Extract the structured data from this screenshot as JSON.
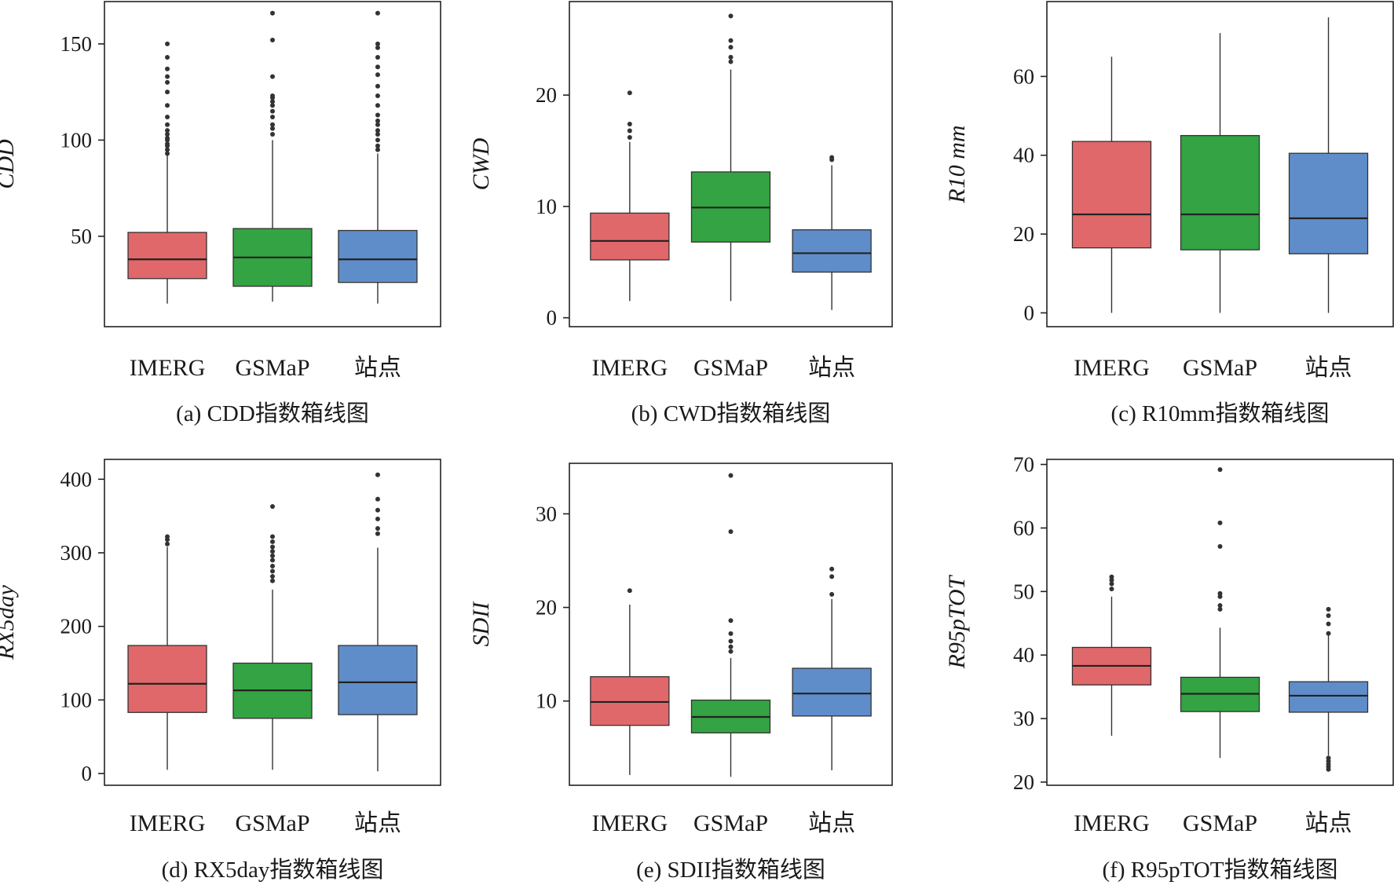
{
  "chart_data": [
    {
      "type": "box",
      "caption": "(a) CDD指数箱线图",
      "ylabel": "CDD",
      "ylim": [
        3,
        172
      ],
      "yticks": [
        50,
        100,
        150
      ],
      "categories": [
        "IMERG",
        "GSMaP",
        "站点"
      ],
      "colors": [
        "#E0686A",
        "#34A343",
        "#5F8DC9"
      ],
      "boxes": [
        {
          "min": 15,
          "q1": 28,
          "median": 38,
          "q3": 52,
          "max": 92,
          "outliers": [
            93,
            95,
            97,
            98,
            100,
            101,
            103,
            105,
            108,
            112,
            118,
            125,
            130,
            133,
            137,
            143,
            150
          ]
        },
        {
          "min": 16,
          "q1": 24,
          "median": 39,
          "q3": 54,
          "max": 100,
          "outliers": [
            103,
            106,
            108,
            112,
            115,
            118,
            120,
            122,
            123,
            133,
            152,
            166
          ]
        },
        {
          "min": 15,
          "q1": 26,
          "median": 38,
          "q3": 53,
          "max": 93,
          "outliers": [
            95,
            97,
            100,
            103,
            105,
            108,
            110,
            113,
            118,
            123,
            128,
            134,
            138,
            143,
            148,
            150,
            166
          ]
        }
      ]
    },
    {
      "type": "box",
      "caption": "(b) CWD指数箱线图",
      "ylabel": "CWD",
      "ylim": [
        -0.8,
        28.4
      ],
      "yticks": [
        0,
        10,
        20
      ],
      "categories": [
        "IMERG",
        "GSMaP",
        "站点"
      ],
      "colors": [
        "#E0686A",
        "#34A343",
        "#5F8DC9"
      ],
      "boxes": [
        {
          "min": 1.5,
          "q1": 5.2,
          "median": 6.9,
          "q3": 9.4,
          "max": 15.8,
          "outliers": [
            16.2,
            16.8,
            17.4,
            20.2
          ]
        },
        {
          "min": 1.5,
          "q1": 6.8,
          "median": 9.9,
          "q3": 13.1,
          "max": 22.3,
          "outliers": [
            23.0,
            23.4,
            24.3,
            24.9,
            27.1
          ]
        },
        {
          "min": 0.7,
          "q1": 4.1,
          "median": 5.8,
          "q3": 7.9,
          "max": 13.7,
          "outliers": [
            14.2,
            14.4
          ]
        }
      ]
    },
    {
      "type": "box",
      "caption": "(c) R10mm指数箱线图",
      "ylabel": "R10 mm",
      "ylim": [
        -3.5,
        79
      ],
      "yticks": [
        0,
        20,
        40,
        60
      ],
      "categories": [
        "IMERG",
        "GSMaP",
        "站点"
      ],
      "colors": [
        "#E0686A",
        "#34A343",
        "#5F8DC9"
      ],
      "boxes": [
        {
          "min": 0,
          "q1": 16.5,
          "median": 25,
          "q3": 43.5,
          "max": 65,
          "outliers": []
        },
        {
          "min": 0,
          "q1": 16,
          "median": 25,
          "q3": 45,
          "max": 71,
          "outliers": []
        },
        {
          "min": 0,
          "q1": 15,
          "median": 24,
          "q3": 40.5,
          "max": 75,
          "outliers": []
        }
      ]
    },
    {
      "type": "box",
      "caption": "(d) RX5day指数箱线图",
      "ylabel": "RX5day",
      "ylim": [
        -16,
        427
      ],
      "yticks": [
        0,
        100,
        200,
        300,
        400
      ],
      "categories": [
        "IMERG",
        "GSMaP",
        "站点"
      ],
      "colors": [
        "#E0686A",
        "#34A343",
        "#5F8DC9"
      ],
      "boxes": [
        {
          "min": 5,
          "q1": 83,
          "median": 122,
          "q3": 174,
          "max": 308,
          "outliers": [
            312,
            318,
            322
          ]
        },
        {
          "min": 5,
          "q1": 75,
          "median": 113,
          "q3": 150,
          "max": 250,
          "outliers": [
            262,
            268,
            275,
            282,
            290,
            296,
            302,
            308,
            315,
            322,
            363
          ]
        },
        {
          "min": 3,
          "q1": 80,
          "median": 124,
          "q3": 174,
          "max": 307,
          "outliers": [
            326,
            333,
            346,
            358,
            373,
            406
          ]
        }
      ]
    },
    {
      "type": "box",
      "caption": "(e) SDII指数箱线图",
      "ylabel": "SDII",
      "ylim": [
        1,
        35.4
      ],
      "yticks": [
        10,
        20,
        30
      ],
      "categories": [
        "IMERG",
        "GSMaP",
        "站点"
      ],
      "colors": [
        "#E0686A",
        "#34A343",
        "#5F8DC9"
      ],
      "boxes": [
        {
          "min": 2.1,
          "q1": 7.4,
          "median": 9.9,
          "q3": 12.6,
          "max": 20.3,
          "outliers": [
            21.8
          ]
        },
        {
          "min": 1.9,
          "q1": 6.6,
          "median": 8.3,
          "q3": 10.1,
          "max": 14.6,
          "outliers": [
            15.3,
            15.8,
            16.4,
            17.2,
            18.6,
            28.1,
            34.1
          ]
        },
        {
          "min": 2.6,
          "q1": 8.4,
          "median": 10.8,
          "q3": 13.5,
          "max": 20.9,
          "outliers": [
            21.4,
            23.3,
            24.1
          ]
        }
      ]
    },
    {
      "type": "box",
      "caption": "(f) R95pTOT指数箱线图",
      "ylabel": "R95pTOT",
      "ylim": [
        19.5,
        70.8
      ],
      "yticks": [
        20,
        30,
        40,
        50,
        60,
        70
      ],
      "categories": [
        "IMERG",
        "GSMaP",
        "站点"
      ],
      "colors": [
        "#E0686A",
        "#34A343",
        "#5F8DC9"
      ],
      "boxes": [
        {
          "min": 27.3,
          "q1": 35.3,
          "median": 38.3,
          "q3": 41.2,
          "max": 49.2,
          "outliers": [
            50.4,
            51.2,
            51.8,
            52.3
          ]
        },
        {
          "min": 23.8,
          "q1": 31.1,
          "median": 33.9,
          "q3": 36.5,
          "max": 44.3,
          "outliers": [
            47.2,
            47.8,
            49.2,
            49.7,
            57.1,
            60.8,
            69.2
          ]
        },
        {
          "min": 24.2,
          "q1": 31.0,
          "median": 33.6,
          "q3": 35.8,
          "max": 43.2,
          "outliers": [
            43.4,
            44.9,
            46.2,
            47.2,
            23.8,
            23.3,
            22.8,
            22.4,
            22.0
          ]
        }
      ]
    }
  ]
}
